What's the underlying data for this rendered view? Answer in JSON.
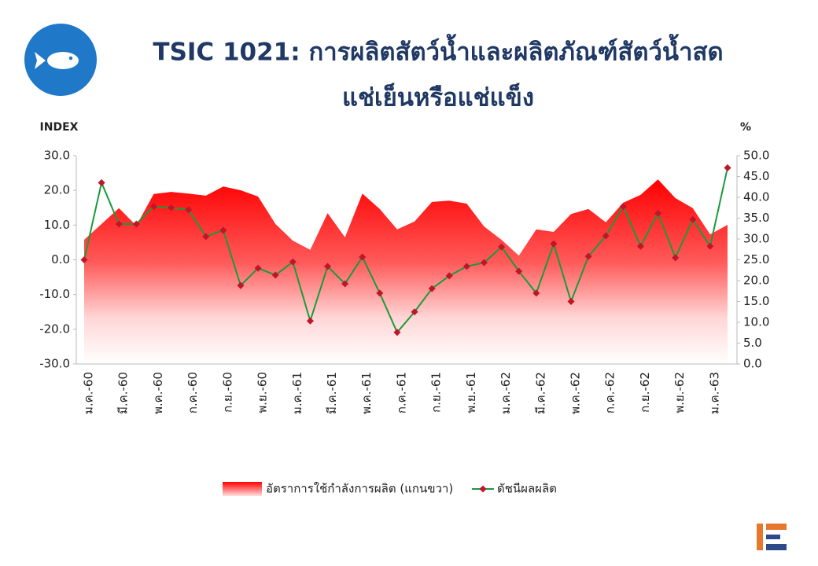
{
  "chart_data": {
    "type": "area-line",
    "title": "TSIC 1021: การผลิตสัตว์น้ำและผลิตภัณฑ์สัตว์น้ำสด",
    "subtitle": "แช่เย็นหรือแช่แข็ง",
    "ylabel": "INDEX",
    "y2label": "%",
    "categories": [
      "ม.ค.-60",
      null,
      "มี.ค.-60",
      null,
      "พ.ค.-60",
      null,
      "ก.ค.-60",
      null,
      "ก.ย.-60",
      null,
      "พ.ย.-60",
      null,
      "ม.ค.-61",
      null,
      "มี.ค.-61",
      null,
      "พ.ค.-61",
      null,
      "ก.ค.-61",
      null,
      "ก.ย.-61",
      null,
      "พ.ย.-61",
      null,
      "ม.ค.-62",
      null,
      "มี.ค.-62",
      null,
      "พ.ค.-62",
      null,
      "ก.ค.-62",
      null,
      "ก.ย.-62",
      null,
      "พ.ย.-62",
      null,
      "ม.ค.-63",
      null
    ],
    "series": [
      {
        "name": "อัตราการใช้กำลังการผลิต (แกนขวา)",
        "color": "#ff0000",
        "axis": "y2",
        "kind": "area",
        "values": [
          29.8,
          33.6,
          37.4,
          33.2,
          40.8,
          41.3,
          40.9,
          40.4,
          42.6,
          41.7,
          40.2,
          33.6,
          29.6,
          27.4,
          36.2,
          30.4,
          40.9,
          37.2,
          32.3,
          34.2,
          38.9,
          39.2,
          38.5,
          33.0,
          29.8,
          26.0,
          32.3,
          31.7,
          36.0,
          37.2,
          34.0,
          38.7,
          40.6,
          44.3,
          39.8,
          37.4,
          31.1,
          33.4
        ]
      },
      {
        "name": "ดัชนีผลผลิต",
        "color": "#1a9a3a",
        "marker_color": "#c0152a",
        "kind": "line",
        "values": [
          0.0,
          22.2,
          10.3,
          10.3,
          15.4,
          15.0,
          14.4,
          6.7,
          8.5,
          -7.4,
          -2.4,
          -4.4,
          -0.6,
          -17.6,
          -1.9,
          -6.9,
          0.8,
          -9.6,
          -20.9,
          -15.0,
          -8.3,
          -4.6,
          -1.9,
          -0.8,
          3.7,
          -3.3,
          -9.6,
          4.6,
          -12.0,
          1.0,
          6.9,
          15.4,
          3.9,
          13.4,
          0.6,
          11.6,
          3.9,
          26.5
        ]
      }
    ],
    "ylim": [
      -30,
      30
    ],
    "yticks": [
      {
        "value": -30,
        "label": "-30.0"
      },
      {
        "value": -20,
        "label": "-20.0"
      },
      {
        "value": -10,
        "label": "-10.0"
      },
      {
        "value": 0,
        "label": "0.0"
      },
      {
        "value": 10,
        "label": "10.0"
      },
      {
        "value": 20,
        "label": "20.0"
      },
      {
        "value": 30,
        "label": "30.0"
      }
    ],
    "y2lim": [
      0,
      50
    ],
    "y2ticks": [
      {
        "value": 0,
        "label": "0.0"
      },
      {
        "value": 5,
        "label": "5.0"
      },
      {
        "value": 10,
        "label": "10.0"
      },
      {
        "value": 15,
        "label": "15.0"
      },
      {
        "value": 20,
        "label": "20.0"
      },
      {
        "value": 25,
        "label": "25.0"
      },
      {
        "value": 30,
        "label": "30.0"
      },
      {
        "value": 35,
        "label": "35.0"
      },
      {
        "value": 40,
        "label": "40.0"
      },
      {
        "value": 45,
        "label": "45.0"
      },
      {
        "value": 50,
        "label": "50.0"
      }
    ]
  }
}
